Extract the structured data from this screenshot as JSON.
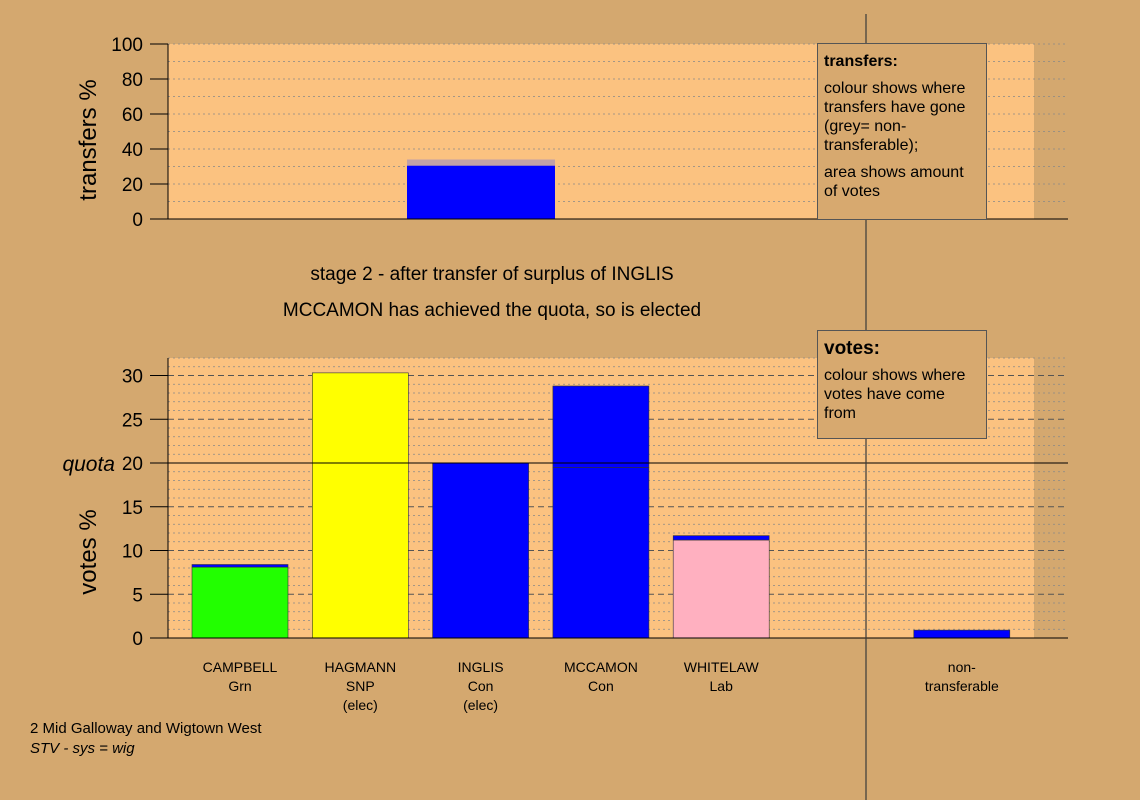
{
  "page": {
    "stage_line": "stage 2 - after transfer of surplus of INGLIS",
    "elected_line": "MCCAMON has achieved the quota, so is elected",
    "footer_line1": "2 Mid Galloway and Wigtown West",
    "footer_line2": "STV - sys = wig"
  },
  "legends": {
    "transfers": {
      "title": "transfers:",
      "text1": "colour shows where transfers have gone (grey= non-transferable);",
      "text2": "area shows amount of votes"
    },
    "votes": {
      "title": "votes:",
      "text1": "colour shows where votes have come from"
    }
  },
  "chart_data": [
    {
      "type": "bar",
      "name": "transfers",
      "ylabel": "transfers %",
      "ylim": [
        0,
        100
      ],
      "yticks": [
        0,
        20,
        40,
        60,
        80,
        100
      ],
      "bars": [
        {
          "segments": [
            {
              "value": 30.5,
              "color": "#0000FF"
            },
            {
              "value": 3.5,
              "color": "#C0A0A8"
            }
          ]
        }
      ],
      "colors": {
        "plot_bg": "#FBC280",
        "grid": "#888888"
      }
    },
    {
      "type": "bar",
      "name": "votes",
      "ylabel": "votes %",
      "ylim": [
        0,
        32
      ],
      "yticks": [
        0,
        5,
        10,
        15,
        20,
        25,
        30
      ],
      "quota": 20,
      "quota_label": "quota",
      "categories": [
        {
          "label1": "CAMPBELL",
          "label2": "Grn",
          "label3": ""
        },
        {
          "label1": "HAGMANN",
          "label2": "SNP",
          "label3": "(elec)"
        },
        {
          "label1": "INGLIS",
          "label2": "Con",
          "label3": "(elec)"
        },
        {
          "label1": "MCCAMON",
          "label2": "Con",
          "label3": ""
        },
        {
          "label1": "WHITELAW",
          "label2": "Lab",
          "label3": ""
        },
        {
          "label1": "non-",
          "label2": "transferable",
          "label3": ""
        }
      ],
      "bars": [
        {
          "segments": [
            {
              "value": 8.1,
              "color": "#22FF00"
            },
            {
              "value": 0.3,
              "color": "#0000FF"
            }
          ]
        },
        {
          "segments": [
            {
              "value": 30.3,
              "color": "#FFFF00"
            }
          ]
        },
        {
          "segments": [
            {
              "value": 20.0,
              "color": "#0000FF"
            }
          ]
        },
        {
          "segments": [
            {
              "value": 19.5,
              "color": "#0000FF"
            },
            {
              "value": 9.3,
              "color": "#0000FF"
            }
          ]
        },
        {
          "segments": [
            {
              "value": 11.2,
              "color": "#FFB0C0"
            },
            {
              "value": 0.5,
              "color": "#0000FF"
            }
          ]
        },
        {
          "segments": []
        },
        {
          "segments": [
            {
              "value": 0.9,
              "color": "#0000FF"
            }
          ]
        }
      ],
      "colors": {
        "plot_bg": "#FBC280",
        "grid": "#888888"
      }
    }
  ]
}
